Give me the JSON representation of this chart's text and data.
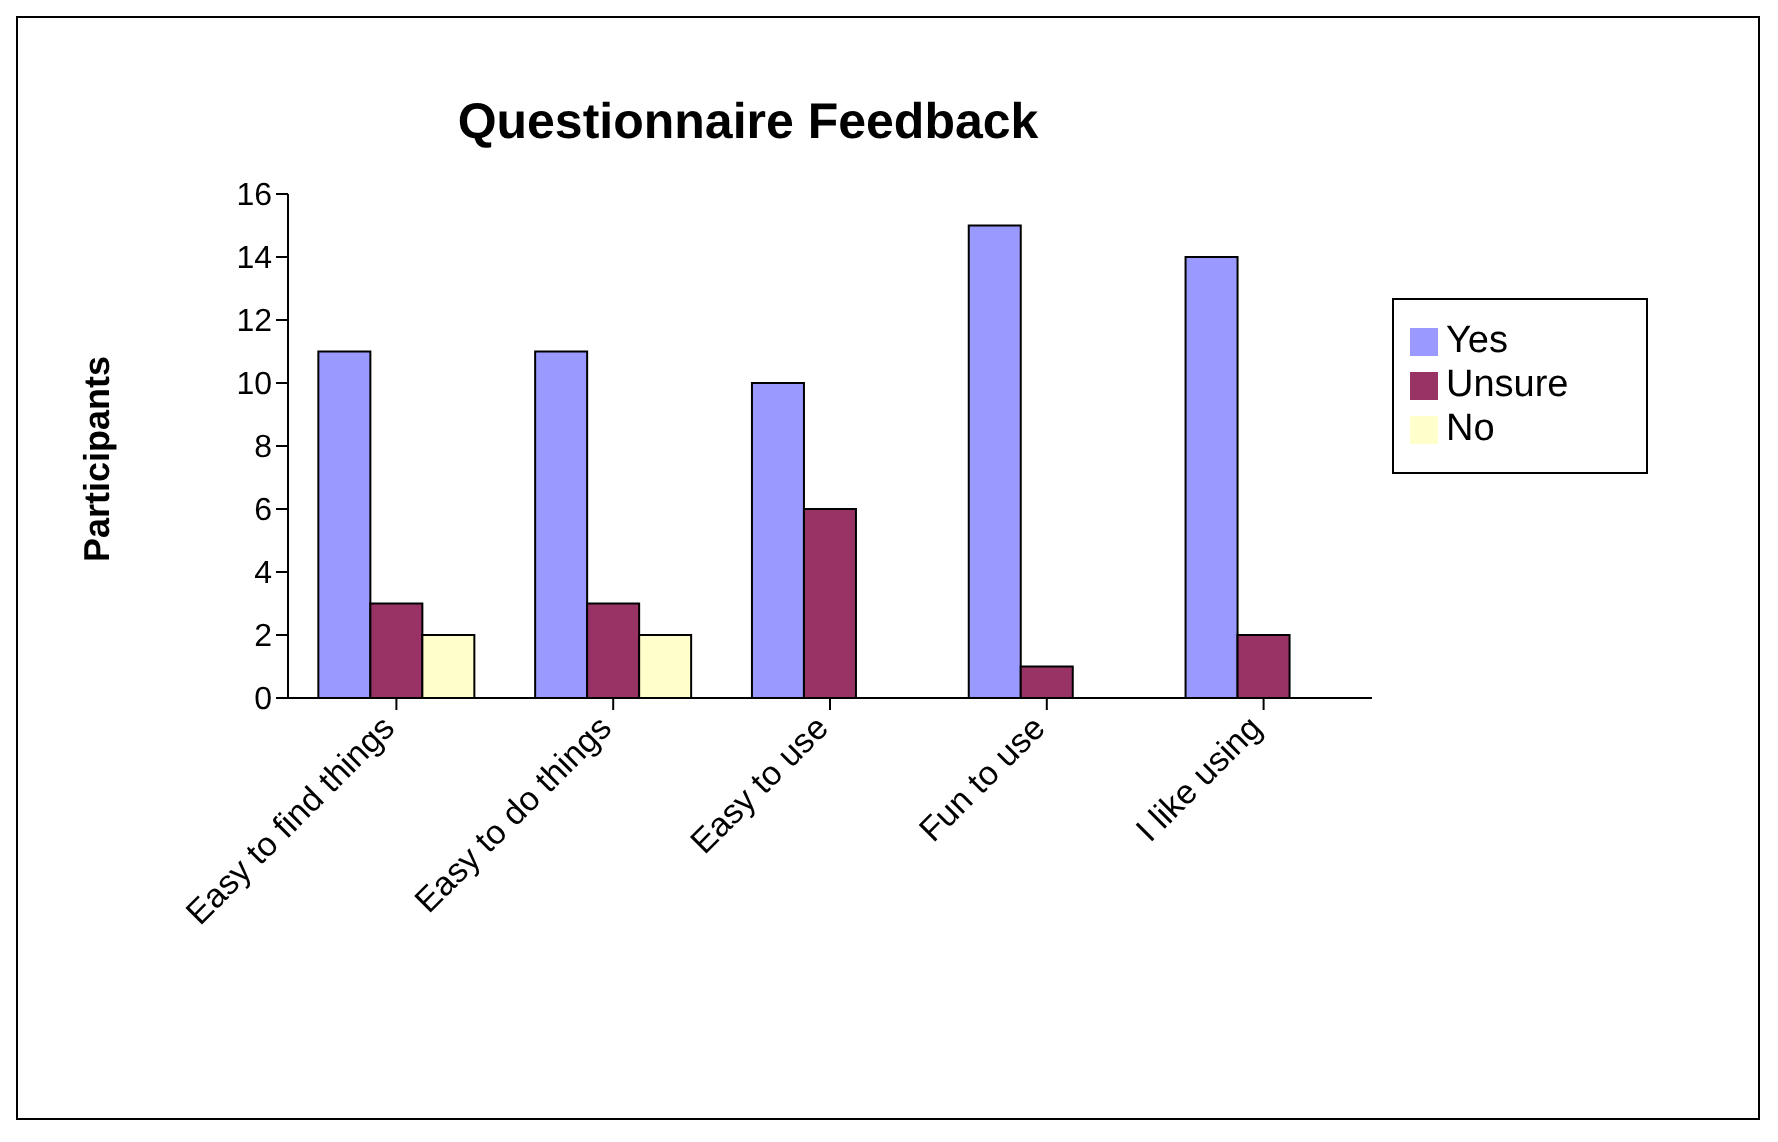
{
  "chart_data": {
    "type": "bar",
    "title": "Questionnaire Feedback",
    "ylabel": "Participants",
    "categories": [
      "Easy to find things",
      "Easy to do things",
      "Easy to use",
      "Fun to use",
      "I like using"
    ],
    "series": [
      {
        "name": "Yes",
        "color": "#9999ff",
        "values": [
          11,
          11,
          10,
          15,
          14
        ]
      },
      {
        "name": "Unsure",
        "color": "#993366",
        "values": [
          3,
          3,
          6,
          1,
          2
        ]
      },
      {
        "name": "No",
        "color": "#ffffcc",
        "values": [
          2,
          2,
          0,
          0,
          0
        ]
      }
    ],
    "ylim": [
      0,
      16
    ],
    "yticks": [
      0,
      2,
      4,
      6,
      8,
      10,
      12,
      14,
      16
    ],
    "grid": false,
    "legend": "right"
  }
}
